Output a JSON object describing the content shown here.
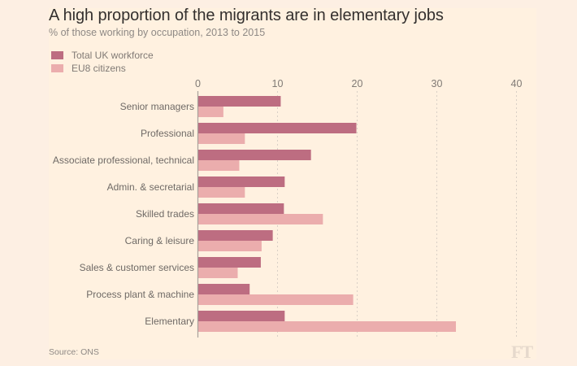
{
  "title": "A high proportion of the migrants are in elementary jobs",
  "subtitle": "% of those working by occupation, 2013 to 2015",
  "source": "Source: ONS",
  "logo": "FT",
  "colors": {
    "total": "#bd6d81",
    "eu8": "#ebadad",
    "grid": "#d9cfc6",
    "axis": "#a7a19b"
  },
  "legend": [
    {
      "label": "Total UK workforce",
      "color": "#bd6d81"
    },
    {
      "label": "EU8 citizens",
      "color": "#ebadad"
    }
  ],
  "chart_data": {
    "type": "bar",
    "orientation": "horizontal",
    "title": "A high proportion of the migrants are in elementary jobs",
    "subtitle": "% of those working by occupation, 2013 to 2015",
    "xlabel": "",
    "ylabel": "",
    "xlim": [
      0,
      43
    ],
    "xticks": [
      0,
      10,
      20,
      30,
      40
    ],
    "grid": true,
    "legend_position": "top-left",
    "categories": [
      "Senior managers",
      "Professional",
      "Associate professional, technical",
      "Admin. & secretarial",
      "Skilled trades",
      "Caring & leisure",
      "Sales & customer services",
      "Process plant & machine",
      "Elementary"
    ],
    "series": [
      {
        "name": "Total UK workforce",
        "values": [
          10.4,
          19.9,
          14.2,
          10.9,
          10.8,
          9.4,
          7.9,
          6.5,
          10.9
        ]
      },
      {
        "name": "EU8 citizens",
        "values": [
          3.2,
          5.9,
          5.2,
          5.9,
          15.7,
          8.0,
          5.0,
          19.5,
          32.4
        ]
      }
    ],
    "source": "Source: ONS"
  }
}
